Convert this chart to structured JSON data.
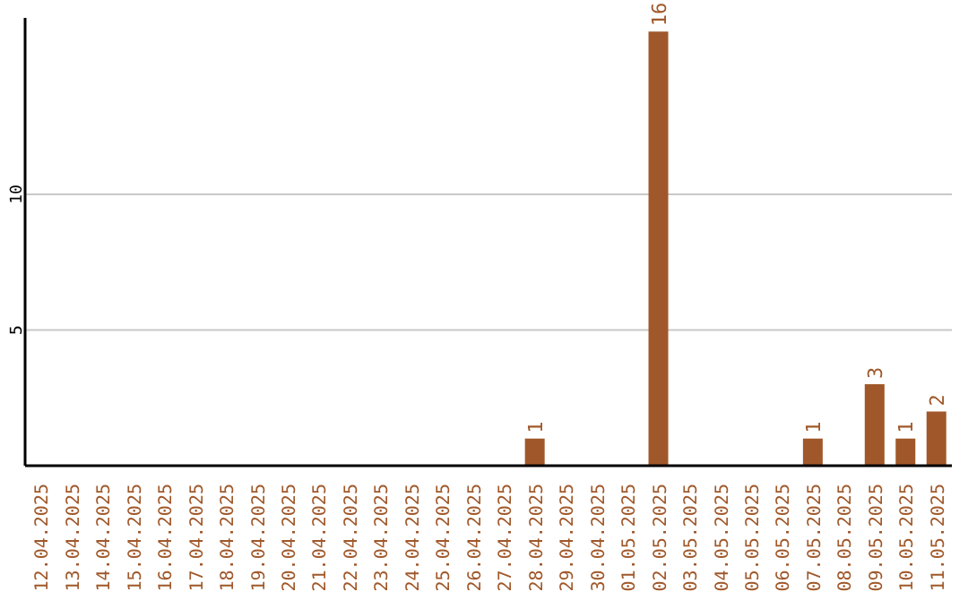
{
  "chart_data": {
    "type": "bar",
    "categories": [
      "12.04.2025",
      "13.04.2025",
      "14.04.2025",
      "15.04.2025",
      "16.04.2025",
      "17.04.2025",
      "18.04.2025",
      "19.04.2025",
      "20.04.2025",
      "21.04.2025",
      "22.04.2025",
      "23.04.2025",
      "24.04.2025",
      "25.04.2025",
      "26.04.2025",
      "27.04.2025",
      "28.04.2025",
      "29.04.2025",
      "30.04.2025",
      "01.05.2025",
      "02.05.2025",
      "03.05.2025",
      "04.05.2025",
      "05.05.2025",
      "06.05.2025",
      "07.05.2025",
      "08.05.2025",
      "09.05.2025",
      "10.05.2025",
      "11.05.2025"
    ],
    "values": [
      0,
      0,
      0,
      0,
      0,
      0,
      0,
      0,
      0,
      0,
      0,
      0,
      0,
      0,
      0,
      0,
      1,
      0,
      0,
      0,
      16,
      0,
      0,
      0,
      0,
      1,
      0,
      3,
      1,
      2
    ],
    "value_labels": [
      null,
      null,
      null,
      null,
      null,
      null,
      null,
      null,
      null,
      null,
      null,
      null,
      null,
      null,
      null,
      null,
      "1",
      null,
      null,
      null,
      "16",
      null,
      null,
      null,
      null,
      "1",
      null,
      "3",
      "1",
      "2"
    ],
    "color": "#a0582a",
    "ylim": [
      0,
      16.5
    ],
    "yticks": [
      5,
      10
    ],
    "grid": "y"
  }
}
